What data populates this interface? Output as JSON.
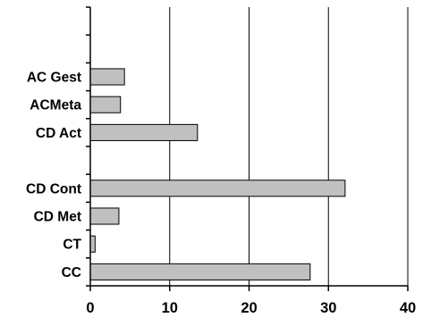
{
  "chart_data": {
    "type": "bar",
    "orientation": "horizontal",
    "categories": [
      "",
      "",
      "AC Gest",
      "ACMeta",
      "CD Act",
      "",
      "CD Cont",
      "CD Met",
      "CT",
      "CC"
    ],
    "values": [
      null,
      null,
      4.3,
      3.8,
      13.5,
      null,
      32.1,
      3.6,
      0.6,
      27.7
    ],
    "xlim": [
      0,
      40
    ],
    "xticks": [
      "0",
      "10",
      "20",
      "30",
      "40"
    ],
    "title": "",
    "xlabel": "",
    "ylabel": "",
    "grid": "vertical",
    "legend": "none",
    "colors": {
      "bar_fill": "#c0c0c0",
      "bar_stroke": "#000000",
      "gridline": "#000000",
      "axis": "#000000"
    }
  }
}
